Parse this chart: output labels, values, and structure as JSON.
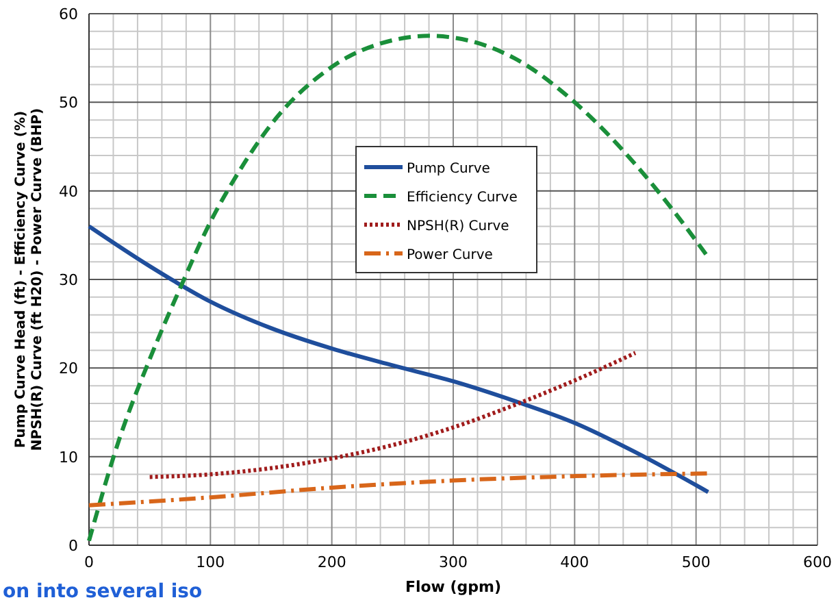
{
  "chart_data": {
    "type": "line",
    "xlabel": "Flow (gpm)",
    "ylabel": "Pump Curve Head (ft) - Efficiency Curve (%)\nNPSH(R) Curve (ft H20) - Power Curve (BHP)",
    "xlim": [
      0,
      600
    ],
    "xticks": [
      0,
      100,
      200,
      300,
      400,
      500,
      600
    ],
    "ylim": [
      0,
      60
    ],
    "yticks": [
      0,
      10,
      20,
      30,
      40,
      50,
      60
    ],
    "grid": true,
    "legend": "top",
    "series": [
      {
        "name": "Pump Curve",
        "color": "#1f4e9c",
        "line_style": "solid",
        "x": [
          0,
          50,
          100,
          150,
          200,
          250,
          300,
          350,
          400,
          450,
          510
        ],
        "values": [
          36,
          31.5,
          27.5,
          24.5,
          22.2,
          20.3,
          18.5,
          16.3,
          13.8,
          10.5,
          6
        ]
      },
      {
        "name": "Efficiency Curve",
        "color": "#1a8f3a",
        "line_style": "dashed",
        "x": [
          0,
          25,
          50,
          75,
          100,
          125,
          150,
          200,
          250,
          280,
          300,
          350,
          400,
          450,
          480,
          510
        ],
        "values": [
          0.5,
          12,
          21,
          29,
          36.5,
          42.5,
          47.5,
          54,
          57,
          57.5,
          57.3,
          55,
          50,
          43,
          38,
          32.5
        ]
      },
      {
        "name": "NPSH(R) Curve",
        "color": "#a01c1c",
        "line_style": "dotted",
        "x": [
          50,
          100,
          150,
          200,
          250,
          300,
          350,
          400,
          450
        ],
        "values": [
          7.7,
          8,
          8.7,
          9.8,
          11.3,
          13.3,
          15.8,
          18.6,
          21.7
        ]
      },
      {
        "name": "Power Curve",
        "color": "#d8661a",
        "line_style": "dashdot",
        "x": [
          0,
          100,
          200,
          300,
          400,
          510
        ],
        "values": [
          4.5,
          5.4,
          6.5,
          7.3,
          7.8,
          8.1
        ]
      }
    ],
    "annotations": [
      "on into several iso"
    ]
  }
}
